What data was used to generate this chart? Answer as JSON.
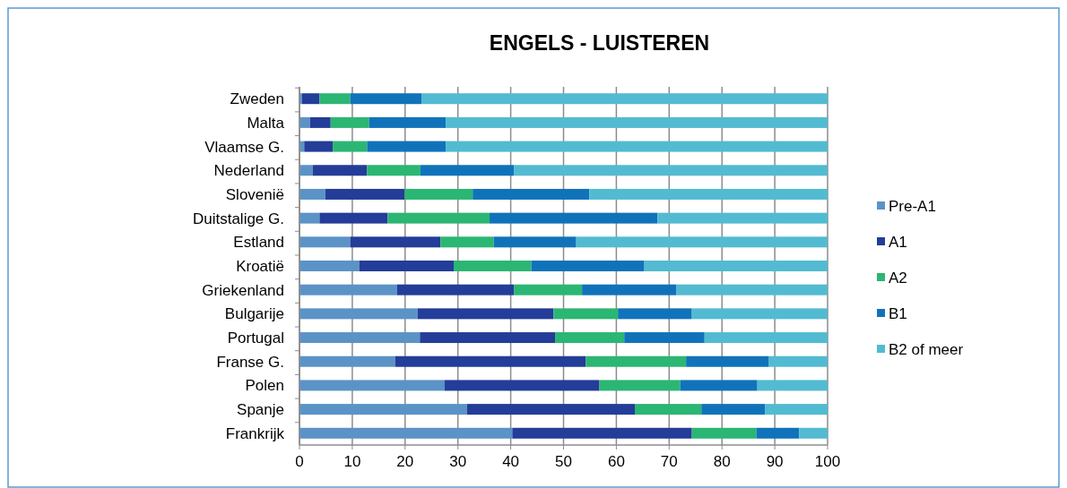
{
  "chart_data": {
    "type": "bar",
    "orientation": "horizontal",
    "stacked": true,
    "title": "ENGELS - LUISTEREN",
    "categories": [
      "Zweden",
      "Malta",
      "Vlaamse G.",
      "Nederland",
      "Slovenië",
      "Duitstalige G.",
      "Estland",
      "Kroatië",
      "Griekenland",
      "Bulgarije",
      "Portugal",
      "Franse G.",
      "Polen",
      "Spanje",
      "Frankrijk"
    ],
    "series": [
      {
        "name": "Pre-A1",
        "color": "#5b93c7",
        "values": [
          0.5,
          2.0,
          0.9,
          2.5,
          4.9,
          3.8,
          9.6,
          11.3,
          18.5,
          22.4,
          22.8,
          18.1,
          27.5,
          31.7,
          40.3
        ]
      },
      {
        "name": "A1",
        "color": "#233d98",
        "values": [
          3.3,
          3.9,
          5.4,
          10.3,
          15.0,
          12.9,
          17.1,
          17.9,
          22.1,
          25.7,
          25.6,
          36.1,
          29.3,
          31.8,
          34.0
        ]
      },
      {
        "name": "A2",
        "color": "#2bb673",
        "values": [
          5.8,
          7.3,
          6.5,
          10.1,
          12.9,
          19.3,
          10.1,
          14.7,
          12.9,
          12.2,
          13.1,
          19.0,
          15.3,
          12.6,
          12.2
        ]
      },
      {
        "name": "B1",
        "color": "#1073ba",
        "values": [
          13.5,
          14.5,
          14.9,
          17.7,
          22.1,
          31.8,
          15.6,
          21.4,
          17.9,
          14.0,
          15.2,
          15.7,
          14.6,
          12.1,
          8.1
        ]
      },
      {
        "name": "B2 of meer",
        "color": "#52bbd1",
        "values": [
          76.9,
          72.3,
          72.3,
          59.4,
          45.1,
          32.2,
          47.6,
          34.7,
          28.6,
          25.7,
          23.3,
          11.1,
          13.3,
          11.8,
          5.4
        ]
      }
    ],
    "xlim": [
      0,
      100
    ],
    "xticks": [
      0,
      10,
      20,
      30,
      40,
      50,
      60,
      70,
      80,
      90,
      100
    ],
    "grid": "x",
    "legend": "right"
  }
}
